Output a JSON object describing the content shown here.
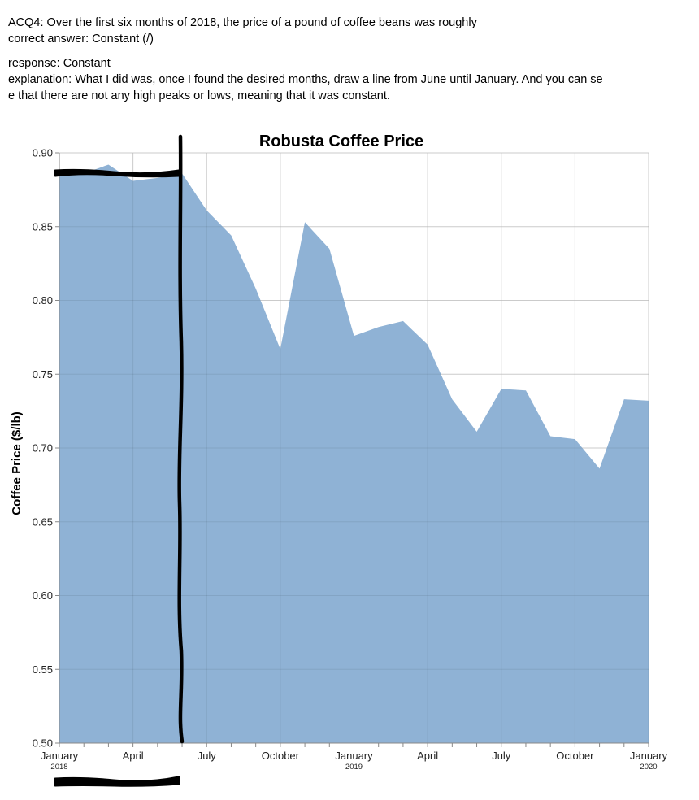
{
  "question": {
    "prompt": "ACQ4: Over the first six months of 2018, the price of a pound of coffee beans was roughly __________",
    "correct_answer": "correct answer: Constant (/)",
    "response": "response: Constant",
    "explanation_line1": "explanation: What I did was, once I found the desired months, draw a line from June until January. And you can se",
    "explanation_line2": "e that there are not any high peaks or lows, meaning that it was constant."
  },
  "chart_data": {
    "type": "area",
    "title": "Robusta Coffee Price",
    "xlabel": "",
    "ylabel": "Coffee Price ($/lb)",
    "ylim": [
      0.5,
      0.9
    ],
    "xlim": [
      "2018-01",
      "2020-01"
    ],
    "y_ticks": [
      "0.90",
      "0.85",
      "0.80",
      "0.75",
      "0.70",
      "0.65",
      "0.60",
      "0.55",
      "0.50"
    ],
    "x_ticks": [
      {
        "date": "2018-01",
        "label": "January",
        "year": "2018"
      },
      {
        "date": "2018-04",
        "label": "April",
        "year": ""
      },
      {
        "date": "2018-07",
        "label": "July",
        "year": ""
      },
      {
        "date": "2018-10",
        "label": "October",
        "year": ""
      },
      {
        "date": "2019-01",
        "label": "January",
        "year": "2019"
      },
      {
        "date": "2019-04",
        "label": "April",
        "year": ""
      },
      {
        "date": "2019-07",
        "label": "July",
        "year": ""
      },
      {
        "date": "2019-10",
        "label": "October",
        "year": ""
      },
      {
        "date": "2020-01",
        "label": "January",
        "year": "2020"
      }
    ],
    "grid": true,
    "color": "#8fb2d5",
    "x": [
      "2018-01",
      "2018-02",
      "2018-03",
      "2018-04",
      "2018-05",
      "2018-06",
      "2018-07",
      "2018-08",
      "2018-09",
      "2018-10",
      "2018-11",
      "2018-12",
      "2019-01",
      "2019-02",
      "2019-03",
      "2019-04",
      "2019-05",
      "2019-06",
      "2019-07",
      "2019-08",
      "2019-09",
      "2019-10",
      "2019-11",
      "2019-12",
      "2020-01"
    ],
    "values": [
      0.886,
      0.886,
      0.892,
      0.881,
      0.883,
      0.886,
      0.861,
      0.844,
      0.808,
      0.767,
      0.853,
      0.835,
      0.776,
      0.782,
      0.786,
      0.77,
      0.733,
      0.711,
      0.74,
      0.739,
      0.708,
      0.706,
      0.686,
      0.733,
      0.732
    ]
  },
  "annotations": {
    "color": "#000000",
    "marks": [
      "horizontal-scribble-top",
      "vertical-line-june",
      "horizontal-scribble-bottom"
    ]
  }
}
